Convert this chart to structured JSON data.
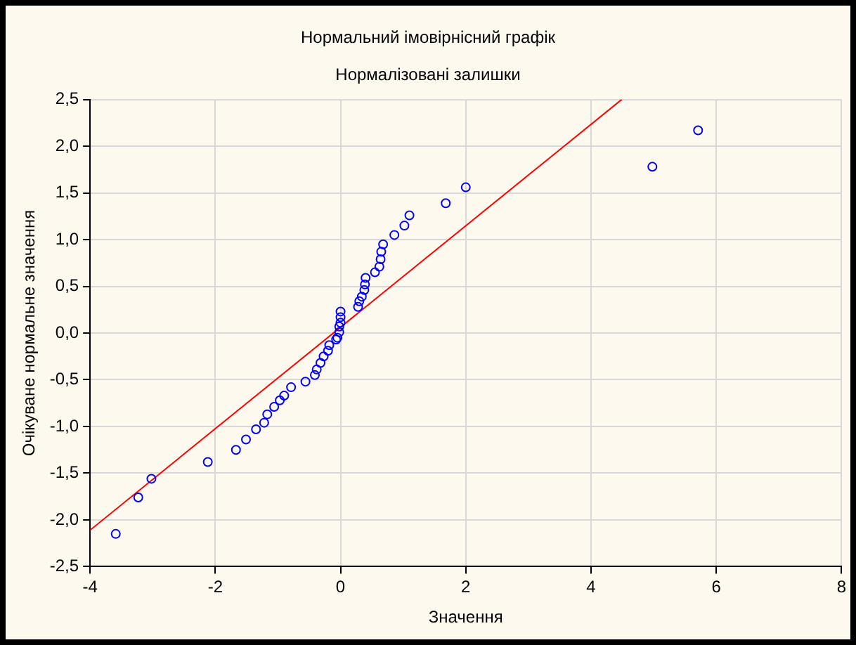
{
  "chart_data": {
    "type": "scatter",
    "title": "Нормальний імовірнісний графік",
    "subtitle": "Нормалізовані залишки",
    "xlabel": "Значення",
    "ylabel": "Очікуване нормальне значення",
    "xlim": [
      -4,
      8
    ],
    "xticks": [
      -4,
      -2,
      0,
      2,
      4,
      6,
      8
    ],
    "ylim": [
      -2.5,
      2.5
    ],
    "yticks": [
      {
        "value": -2.5,
        "label": "-2,5"
      },
      {
        "value": -2,
        "label": "-2,0"
      },
      {
        "value": -1.5,
        "label": "-1,5"
      },
      {
        "value": -1,
        "label": "-1,0"
      },
      {
        "value": -0.5,
        "label": "-0,5"
      },
      {
        "value": 0,
        "label": "0,0"
      },
      {
        "value": 0.5,
        "label": "0,5"
      },
      {
        "value": 1,
        "label": "1,0"
      },
      {
        "value": 1.5,
        "label": "1,5"
      },
      {
        "value": 2,
        "label": "2,0"
      },
      {
        "value": 2.5,
        "label": "2,5"
      }
    ],
    "grid": true,
    "legend": false,
    "marker": "circle",
    "series": [
      {
        "type": "scatter",
        "color": "#0000ff",
        "x": [
          -3.59,
          -3.23,
          -3.02,
          -2.12,
          -1.67,
          -1.51,
          -1.35,
          -1.22,
          -1.17,
          -1.06,
          -0.97,
          -0.9,
          -0.79,
          -0.56,
          -0.41,
          -0.38,
          -0.32,
          -0.27,
          -0.2,
          -0.18,
          -0.07,
          -0.05,
          -0.02,
          -0.02,
          0,
          0,
          0,
          0.28,
          0.3,
          0.34,
          0.38,
          0.39,
          0.4,
          0.55,
          0.62,
          0.64,
          0.65,
          0.68,
          0.86,
          1.02,
          1.1,
          1.68,
          2,
          4.98,
          5.71
        ],
        "values": [
          -2.15,
          -1.76,
          -1.56,
          -1.38,
          -1.25,
          -1.14,
          -1.03,
          -0.96,
          -0.87,
          -0.79,
          -0.72,
          -0.67,
          -0.58,
          -0.52,
          -0.45,
          -0.39,
          -0.32,
          -0.25,
          -0.19,
          -0.13,
          -0.07,
          -0.05,
          0.01,
          0.07,
          0.11,
          0.17,
          0.23,
          0.28,
          0.34,
          0.39,
          0.46,
          0.52,
          0.59,
          0.65,
          0.71,
          0.79,
          0.87,
          0.95,
          1.05,
          1.15,
          1.26,
          1.39,
          1.56,
          1.78,
          2.17
        ]
      },
      {
        "type": "line",
        "marker": "none",
        "color": "#ff0000",
        "x": [
          -4,
          4.49
        ],
        "values": [
          -2.11,
          2.5
        ]
      }
    ]
  }
}
